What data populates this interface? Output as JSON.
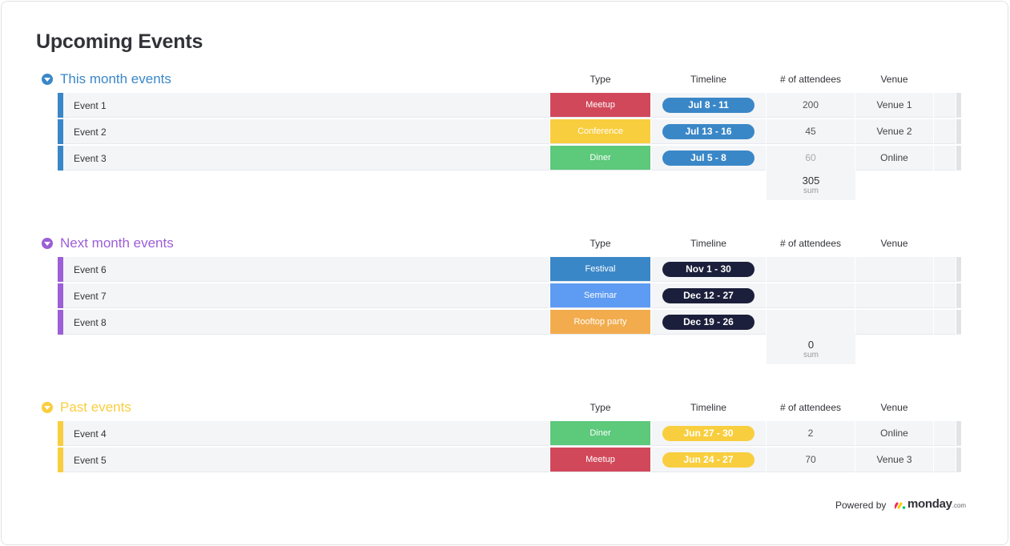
{
  "board": {
    "title": "Upcoming Events"
  },
  "columns": {
    "type": "Type",
    "timeline": "Timeline",
    "attendees": "# of attendees",
    "venue": "Venue"
  },
  "groups": [
    {
      "title": "This month events",
      "color": "#3a87c8",
      "rows": [
        {
          "name": "Event 1",
          "type": "Meetup",
          "type_color": "#d1485b",
          "timeline": "Jul 8 - 11",
          "timeline_color": "#3a87c8",
          "attendees": "200",
          "venue": "Venue 1"
        },
        {
          "name": "Event 2",
          "type": "Conference",
          "type_color": "#f9ce3e",
          "timeline": "Jul 13 - 16",
          "timeline_color": "#3a87c8",
          "attendees": "45",
          "venue": "Venue 2"
        },
        {
          "name": "Event 3",
          "type": "Diner",
          "type_color": "#5cc97b",
          "timeline": "Jul 5 - 8",
          "timeline_color": "#3a87c8",
          "attendees": "60",
          "venue": "Online"
        }
      ],
      "sum": {
        "value": "305",
        "label": "sum"
      }
    },
    {
      "title": "Next month events",
      "color": "#9c5fd6",
      "rows": [
        {
          "name": "Event 6",
          "type": "Festival",
          "type_color": "#3a87c8",
          "timeline": "Nov 1 - 30",
          "timeline_color": "#1c1f3b",
          "attendees": "",
          "venue": ""
        },
        {
          "name": "Event 7",
          "type": "Seminar",
          "type_color": "#5e9bf2",
          "timeline": "Dec 12 - 27",
          "timeline_color": "#1c1f3b",
          "attendees": "",
          "venue": ""
        },
        {
          "name": "Event 8",
          "type": "Rooftop party",
          "type_color": "#f2ac4d",
          "timeline": "Dec 19 - 26",
          "timeline_color": "#1c1f3b",
          "attendees": "",
          "venue": ""
        }
      ],
      "sum": {
        "value": "0",
        "label": "sum"
      }
    },
    {
      "title": "Past events",
      "color": "#f9ce3e",
      "rows": [
        {
          "name": "Event 4",
          "type": "Diner",
          "type_color": "#5cc97b",
          "timeline": "Jun 27 - 30",
          "timeline_color": "#f9ce3e",
          "attendees": "2",
          "venue": "Online"
        },
        {
          "name": "Event 5",
          "type": "Meetup",
          "type_color": "#d1485b",
          "timeline": "Jun 24 - 27",
          "timeline_color": "#f9ce3e",
          "attendees": "70",
          "venue": "Venue 3"
        }
      ]
    }
  ],
  "footer": {
    "powered_by": "Powered by",
    "brand": "monday",
    "brand_suffix": ".com"
  }
}
